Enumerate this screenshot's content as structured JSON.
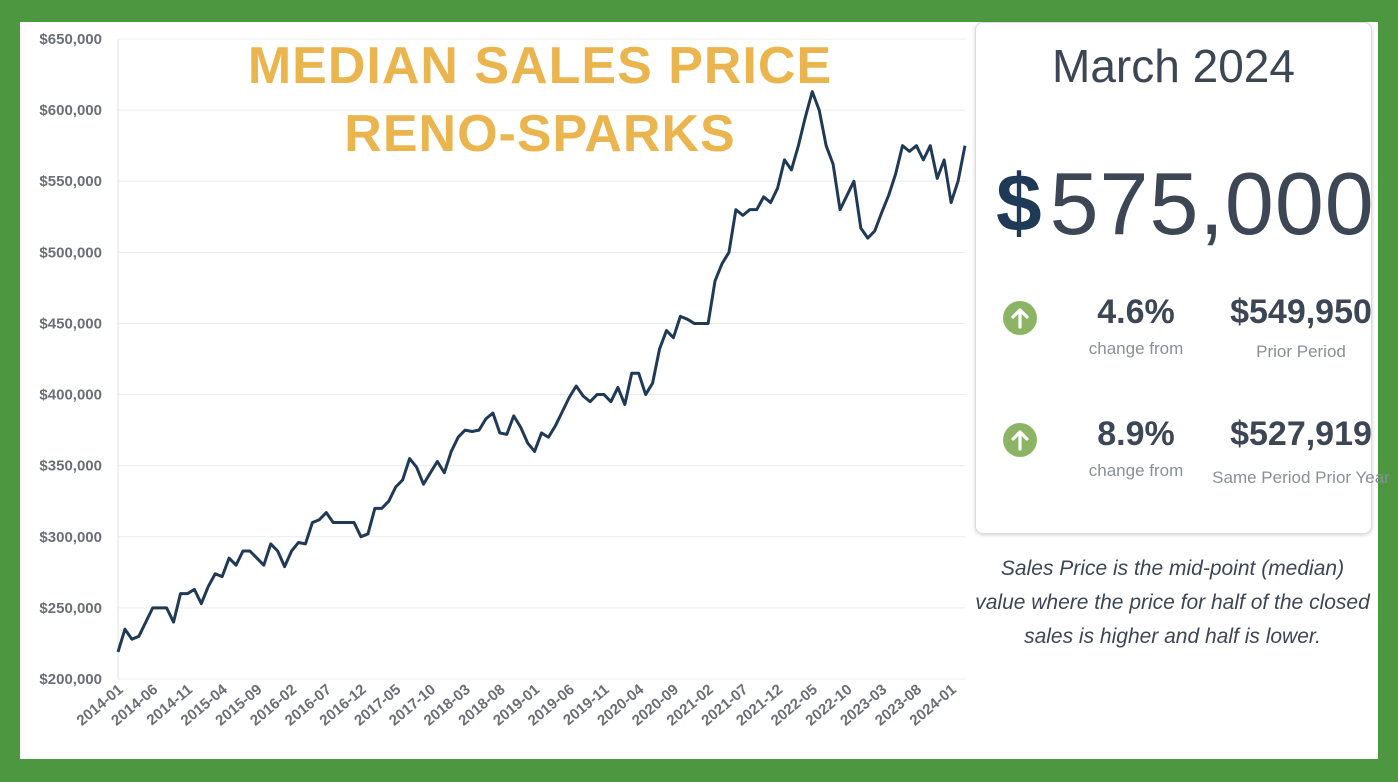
{
  "header": {
    "title_line1": "MEDIAN SALES PRICE",
    "title_line2": "RENO-SPARKS"
  },
  "card": {
    "period": "March 2024",
    "currency_symbol": "$",
    "median_price": "575,000",
    "stat1": {
      "icon": "arrow-up-icon",
      "pct": "4.6%",
      "pct_label": "change from",
      "value": "$549,950",
      "value_label": "Prior Period"
    },
    "stat2": {
      "icon": "arrow-up-icon",
      "pct": "8.9%",
      "pct_label": "change from",
      "value": "$527,919",
      "value_label": "Same Period Prior Year"
    }
  },
  "note": "Sales Price is the mid-point (median) value where the price for half of the closed sales is higher and half is lower.",
  "chart_data": {
    "type": "line",
    "title": "MEDIAN SALES PRICE RENO-SPARKS",
    "xlabel": "",
    "ylabel": "",
    "ylim": [
      200000,
      650000
    ],
    "y_ticks": [
      "$200,000",
      "$250,000",
      "$300,000",
      "$350,000",
      "$400,000",
      "$450,000",
      "$500,000",
      "$550,000",
      "$600,000",
      "$650,000"
    ],
    "x_ticks": [
      "2014-01",
      "2014-06",
      "2014-11",
      "2015-04",
      "2015-09",
      "2016-02",
      "2016-07",
      "2016-12",
      "2017-05",
      "2017-10",
      "2018-03",
      "2018-08",
      "2019-01",
      "2019-06",
      "2019-11",
      "2020-04",
      "2020-09",
      "2021-02",
      "2021-07",
      "2021-12",
      "2022-05",
      "2022-10",
      "2023-03",
      "2023-08",
      "2024-01"
    ],
    "grid": true,
    "legend": "none",
    "line_color": "#1f3a57",
    "x_start": "2014-01",
    "x_end": "2024-03",
    "values": [
      219000,
      235000,
      228000,
      230000,
      240000,
      250000,
      250000,
      250000,
      240000,
      260000,
      260000,
      263000,
      253000,
      265000,
      274000,
      272000,
      285000,
      280000,
      290000,
      290000,
      285000,
      280000,
      295000,
      290000,
      279000,
      290000,
      296000,
      295000,
      310000,
      312000,
      317000,
      310000,
      310000,
      310000,
      310000,
      300000,
      302000,
      320000,
      320000,
      325000,
      335000,
      340000,
      355000,
      349000,
      337000,
      345000,
      353000,
      345000,
      360000,
      370000,
      375000,
      374000,
      375000,
      383000,
      387000,
      373000,
      372000,
      385000,
      377000,
      366000,
      360000,
      373000,
      370000,
      378000,
      388000,
      398000,
      406000,
      399000,
      395000,
      400000,
      400000,
      395000,
      405000,
      393000,
      415000,
      415000,
      400000,
      408000,
      432000,
      445000,
      440000,
      455000,
      453000,
      450000,
      450000,
      450000,
      480000,
      492000,
      500000,
      530000,
      526000,
      530000,
      530000,
      539000,
      535000,
      545000,
      565000,
      558000,
      575000,
      595000,
      613000,
      600000,
      575000,
      562000,
      530000,
      540000,
      550000,
      517000,
      510000,
      515000,
      528000,
      540000,
      555000,
      575000,
      571000,
      575000,
      565000,
      575000,
      552000,
      565000,
      535000,
      550000,
      575000
    ]
  }
}
